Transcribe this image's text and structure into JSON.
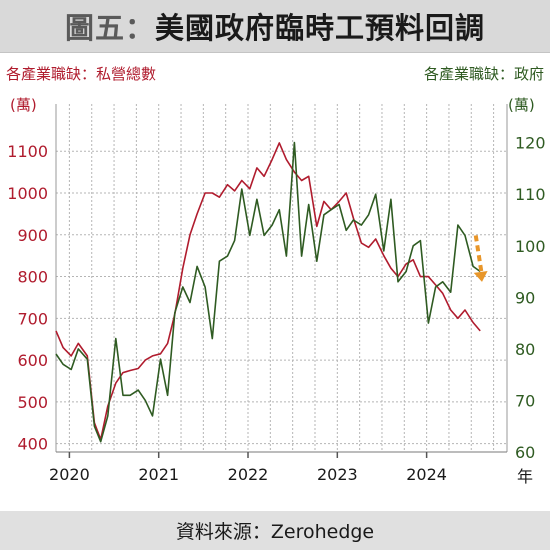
{
  "header": {
    "figure_no": "圖五：",
    "title": "美國政府臨時工預料回調"
  },
  "source": "資料來源：Zerohedge",
  "colors": {
    "left": "#b01c2e",
    "right": "#2f5b22",
    "arrow": "#e8962a",
    "grid": "#b5b5b5"
  },
  "chart_data": {
    "type": "line",
    "title": "美國政府臨時工預料回調",
    "xlabel": "年",
    "x_ticks": [
      "2020",
      "2021",
      "2022",
      "2023",
      "2024"
    ],
    "x_range": [
      2019.85,
      2024.9
    ],
    "y_left": {
      "label": "各產業職缺：私營總數",
      "unit": "(萬)",
      "range": [
        380,
        1170
      ],
      "ticks": [
        400,
        500,
        600,
        700,
        800,
        900,
        1000,
        1100
      ]
    },
    "y_right": {
      "label": "各產業職缺：政府",
      "unit": "(萬)",
      "range": [
        60,
        124
      ],
      "ticks": [
        60,
        70,
        80,
        90,
        100,
        110,
        120
      ]
    },
    "grid": true,
    "series": [
      {
        "name": "各產業職缺：私營總數",
        "axis": "left",
        "color": "#b01c2e",
        "x": [
          2019.85,
          2019.93,
          2020.02,
          2020.1,
          2020.2,
          2020.28,
          2020.35,
          2020.43,
          2020.52,
          2020.6,
          2020.68,
          2020.77,
          2020.85,
          2020.93,
          2021.02,
          2021.1,
          2021.18,
          2021.27,
          2021.35,
          2021.43,
          2021.52,
          2021.6,
          2021.68,
          2021.77,
          2021.85,
          2021.93,
          2022.02,
          2022.1,
          2022.18,
          2022.27,
          2022.35,
          2022.43,
          2022.52,
          2022.6,
          2022.68,
          2022.77,
          2022.85,
          2022.93,
          2023.02,
          2023.1,
          2023.18,
          2023.27,
          2023.35,
          2023.43,
          2023.52,
          2023.6,
          2023.68,
          2023.77,
          2023.85,
          2023.93,
          2024.02,
          2024.1,
          2024.18,
          2024.27,
          2024.35,
          2024.43,
          2024.52,
          2024.6
        ],
        "y": [
          670,
          630,
          610,
          640,
          610,
          450,
          410,
          490,
          545,
          570,
          575,
          580,
          600,
          610,
          615,
          640,
          710,
          820,
          900,
          950,
          1000,
          1000,
          990,
          1020,
          1005,
          1030,
          1010,
          1060,
          1040,
          1080,
          1120,
          1080,
          1050,
          1030,
          1040,
          920,
          980,
          960,
          980,
          1000,
          940,
          880,
          870,
          890,
          850,
          820,
          800,
          830,
          840,
          800,
          800,
          780,
          760,
          720,
          700,
          720,
          690,
          670
        ]
      },
      {
        "name": "各產業職缺：政府",
        "axis": "right",
        "color": "#2f5b22",
        "x": [
          2019.85,
          2019.93,
          2020.02,
          2020.1,
          2020.2,
          2020.28,
          2020.35,
          2020.43,
          2020.52,
          2020.6,
          2020.68,
          2020.77,
          2020.85,
          2020.93,
          2021.02,
          2021.1,
          2021.18,
          2021.27,
          2021.35,
          2021.43,
          2021.52,
          2021.6,
          2021.68,
          2021.77,
          2021.85,
          2021.93,
          2022.02,
          2022.1,
          2022.18,
          2022.27,
          2022.35,
          2022.43,
          2022.52,
          2022.6,
          2022.68,
          2022.77,
          2022.85,
          2022.93,
          2023.02,
          2023.1,
          2023.18,
          2023.27,
          2023.35,
          2023.43,
          2023.52,
          2023.6,
          2023.68,
          2023.77,
          2023.85,
          2023.93,
          2024.02,
          2024.1,
          2024.18,
          2024.27,
          2024.35,
          2024.43,
          2024.52,
          2024.6
        ],
        "y": [
          79,
          77,
          76,
          80,
          78,
          65,
          62,
          67,
          82,
          71,
          71,
          72,
          70,
          67,
          78,
          71,
          87,
          92,
          89,
          96,
          92,
          82,
          97,
          98,
          101,
          111,
          102,
          109,
          102,
          104,
          107,
          98,
          120,
          98,
          108,
          97,
          106,
          107,
          108,
          103,
          105,
          104,
          106,
          110,
          99,
          109,
          93,
          95,
          100,
          101,
          85,
          92,
          93,
          91,
          104,
          102,
          96,
          95
        ]
      }
    ],
    "annotation": {
      "type": "arrow",
      "direction": "down",
      "axis": "right",
      "x": [
        2024.55,
        2024.62
      ],
      "y": [
        102,
        93
      ]
    }
  }
}
